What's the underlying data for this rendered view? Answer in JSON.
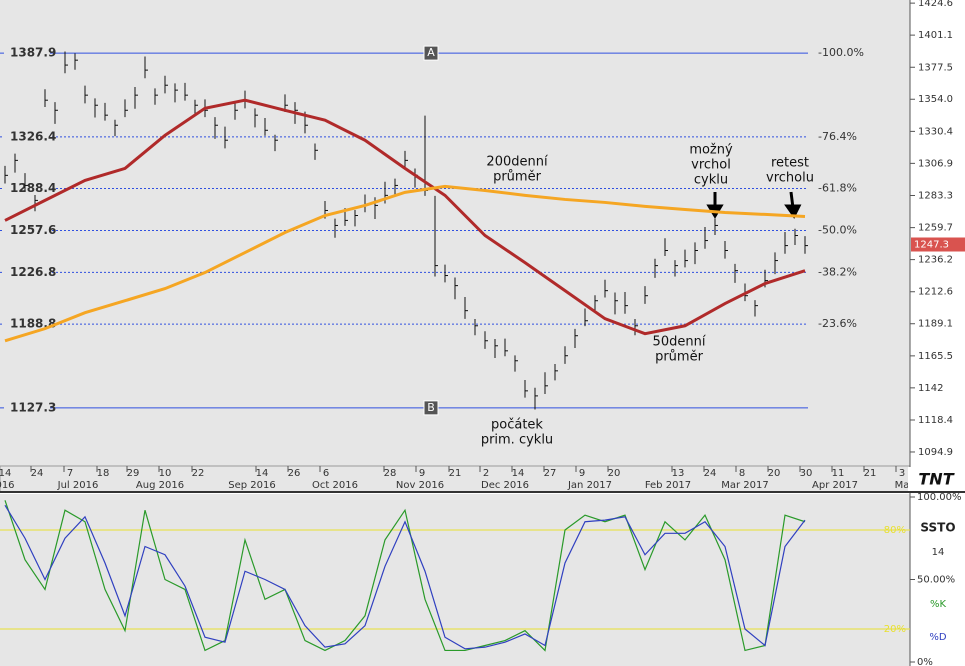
{
  "chart_data": [
    {
      "type": "ohlc",
      "ylim": [
        1084.6,
        1426.9
      ],
      "yticks": [
        1424.6,
        1401.1,
        1377.5,
        {
          "value": 1354,
          "label": "1354.0"
        },
        1330.4,
        1306.9,
        1283.3,
        1259.7,
        1236.2,
        1212.6,
        1189.1,
        1165.5,
        1142.0,
        1118.4,
        1094.9
      ],
      "last_price": 1247.3,
      "xticks_day": [
        "14",
        "24",
        "7",
        "18",
        "29",
        "10",
        "22",
        "14",
        "26",
        "6",
        "28",
        "9",
        "21",
        "2",
        "14",
        "27",
        "9",
        "20",
        "13",
        "24",
        "8",
        "20",
        "30",
        "11",
        "21",
        "3"
      ],
      "xticks_month": [
        "016",
        "Jul 2016",
        "Aug 2016",
        "Sep 2016",
        "Oct 2016",
        "Nov 2016",
        "Dec 2016",
        "Jan 2017",
        "Feb 2017",
        "Mar 2017",
        "Apr 2017",
        "Ma"
      ],
      "fib_levels": [
        {
          "value": 1387.9,
          "label": "-100.0%"
        },
        {
          "value": 1326.4,
          "label": "-76.4%"
        },
        {
          "value": 1288.4,
          "label": "-61.8%"
        },
        {
          "value": 1257.6,
          "label": "-50.0%"
        },
        {
          "value": 1226.8,
          "label": "-38.2%"
        },
        {
          "value": 1188.8,
          "label": "-23.6%"
        },
        1127.3
      ],
      "fib_color": "#3050e0",
      "markers": [
        "A",
        "B"
      ],
      "annotations": [
        [
          "200denní",
          "průměr"
        ],
        [
          "možný",
          "vrchol",
          "cyklu"
        ],
        [
          "retest",
          "vrcholu"
        ],
        [
          "50denní",
          "průměr"
        ],
        [
          "počátek",
          "prim. cyklu"
        ]
      ],
      "logo": "TNT",
      "bars": {
        "color": "#111",
        "high": [
          1305.1,
          1314.1,
          1299.7,
          1283.7,
          1361.3,
          1351.9,
          1389.1,
          1387.7,
          1364.0,
          1354.6,
          1351.3,
          1338.9,
          1353.9,
          1363.0,
          1385.4,
          1362.0,
          1371.3,
          1365.7,
          1366.0,
          1353.6,
          1353.9,
          1340.9,
          1333.9,
          1350.9,
          1360.3,
          1347.3,
          1340.2,
          1327.9,
          1357.6,
          1351.9,
          1344.9,
          1321.5,
          1279.3,
          1266.3,
          1274.0,
          1272.6,
          1284.0,
          1282.0,
          1293.4,
          1295.7,
          1316.1,
          1303.1,
          1342.0,
          1283.0,
          1232.5,
          1223.1,
          1208.7,
          1192.6,
          1183.6,
          1177.9,
          1178.2,
          1165.9,
          1147.8,
          1142.1,
          1153.5,
          1159.5,
          1172.6,
          1185.3,
          1200.3,
          1210.0,
          1221.4,
          1212.0,
          1212.4,
          1192.6,
          1216.7,
          1236.8,
          1251.9,
          1235.8,
          1243.5,
          1248.9,
          1260.2,
          1266.3,
          1249.9,
          1233.1,
          1218.7,
          1206.4,
          1228.8,
          1241.5,
          1256.5,
          1258.9,
          1253.5
        ],
        "low": [
          1292.1,
          1300.1,
          1286.7,
          1271.7,
          1348.3,
          1335.9,
          1373.1,
          1375.7,
          1351.0,
          1340.6,
          1338.3,
          1326.9,
          1340.9,
          1347.0,
          1369.4,
          1350.0,
          1358.3,
          1351.7,
          1353.0,
          1341.6,
          1340.9,
          1324.9,
          1317.9,
          1338.9,
          1347.3,
          1333.3,
          1327.2,
          1315.9,
          1344.6,
          1335.9,
          1328.9,
          1309.5,
          1266.3,
          1252.3,
          1261.0,
          1260.6,
          1271.0,
          1266.0,
          1277.4,
          1283.7,
          1303.1,
          1289.1,
          1283.0,
          1223.8,
          1219.5,
          1207.1,
          1192.7,
          1180.6,
          1170.6,
          1163.9,
          1165.2,
          1153.9,
          1134.8,
          1126.1,
          1137.5,
          1147.5,
          1159.6,
          1171.3,
          1187.3,
          1198.0,
          1208.4,
          1196.0,
          1196.4,
          1180.6,
          1203.7,
          1222.8,
          1238.9,
          1223.8,
          1230.5,
          1232.9,
          1244.2,
          1254.3,
          1236.9,
          1219.1,
          1205.7,
          1194.4,
          1215.8,
          1225.5,
          1240.5,
          1246.9,
          1240.5
        ],
        "close": [
          1298.1,
          1309.1,
          1290.7,
          1279.7,
          1353.3,
          1345.9,
          1379.1,
          1382.7,
          1357.0,
          1349.6,
          1342.3,
          1334.9,
          1345.9,
          1357.0,
          1375.4,
          1357.0,
          1364.3,
          1360.7,
          1357.0,
          1349.6,
          1345.9,
          1334.9,
          1323.9,
          1345.9,
          1353.3,
          1342.3,
          1331.2,
          1323.9,
          1349.6,
          1345.9,
          1334.9,
          1316.5,
          1272.3,
          1261.3,
          1265.0,
          1268.6,
          1276.0,
          1276.0,
          1283.4,
          1290.7,
          1309.1,
          1298.1,
          1287.0,
          1231.8,
          1224.5,
          1217.1,
          1198.7,
          1187.6,
          1176.6,
          1172.9,
          1169.2,
          1161.9,
          1139.8,
          1136.1,
          1143.5,
          1154.5,
          1165.6,
          1180.3,
          1191.3,
          1206.0,
          1213.4,
          1206.0,
          1202.4,
          1187.6,
          1209.7,
          1231.8,
          1242.9,
          1231.8,
          1235.5,
          1242.9,
          1250.2,
          1261.3,
          1242.9,
          1228.1,
          1209.7,
          1202.4,
          1220.8,
          1235.5,
          1246.5,
          1253.9,
          1246.5
        ]
      },
      "lines": [
        {
          "color": "#b02a2a",
          "x": [
            0,
            4,
            8,
            12,
            16,
            20,
            24,
            28,
            32,
            36,
            40,
            44,
            48,
            52,
            56,
            60,
            64,
            68,
            72,
            76,
            80
          ],
          "values": [
            1265.0,
            1279.7,
            1294.4,
            1303.2,
            1327.5,
            1347.4,
            1353.3,
            1345.9,
            1338.6,
            1323.9,
            1303.2,
            1283.4,
            1253.9,
            1234.0,
            1213.4,
            1192.8,
            1181.8,
            1187.6,
            1203.9,
            1218.6,
            1228.1
          ]
        },
        {
          "color": "#f5a623",
          "x": [
            0,
            4,
            8,
            12,
            16,
            20,
            24,
            28,
            32,
            36,
            40,
            44,
            48,
            52,
            56,
            60,
            64,
            68,
            72,
            76,
            80
          ],
          "values": [
            1176.6,
            1185.5,
            1197.2,
            1206.0,
            1214.9,
            1226.7,
            1241.4,
            1256.1,
            1268.6,
            1276.0,
            1285.6,
            1290.0,
            1287.0,
            1283.4,
            1280.4,
            1278.2,
            1275.3,
            1273.0,
            1270.8,
            1269.4,
            1267.9
          ]
        }
      ]
    },
    {
      "type": "line",
      "title": "SSTO",
      "period": 14,
      "ylim": [
        0,
        100
      ],
      "yticks": [
        {
          "value": 100,
          "label": "100.00%"
        },
        {
          "value": 50,
          "label": "50.00%"
        },
        {
          "value": 0,
          "label": "0%"
        }
      ],
      "levels": [
        {
          "value": 80,
          "label": "80%"
        },
        {
          "value": 20,
          "label": "20%"
        }
      ],
      "level_color": "#e8e030",
      "series": [
        {
          "name": "%K",
          "color": "#2a9a2a",
          "values": [
            98,
            62,
            44,
            92,
            85,
            44,
            19,
            92,
            50,
            44,
            7,
            13,
            74,
            38,
            44,
            13,
            7,
            13,
            28,
            74,
            92,
            38,
            7,
            7,
            10,
            13,
            19,
            7,
            80,
            89,
            85,
            89,
            56,
            85,
            74,
            89,
            62,
            7,
            10,
            89,
            85
          ]
        },
        {
          "name": "%D",
          "color": "#3040c0",
          "values": [
            95,
            75,
            50,
            75,
            88,
            60,
            28,
            70,
            65,
            46,
            15,
            12,
            55,
            50,
            44,
            22,
            9,
            11,
            22,
            58,
            85,
            55,
            15,
            8,
            9,
            12,
            17,
            10,
            60,
            85,
            86,
            88,
            65,
            78,
            78,
            85,
            70,
            20,
            10,
            70,
            86
          ]
        }
      ]
    }
  ]
}
